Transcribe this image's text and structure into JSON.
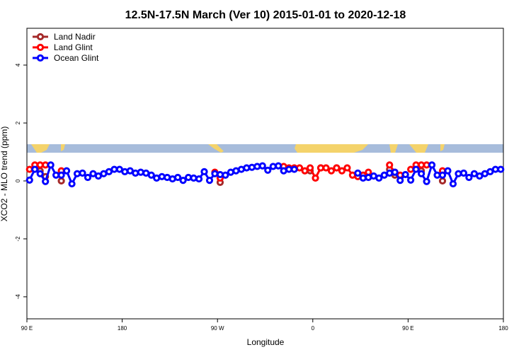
{
  "chart_data": {
    "type": "line",
    "title": "12.5N-17.5N March (Ver 10)   2015-01-01 to 2020-12-18",
    "x_label": "Longitude",
    "y_label": "XCO2 - MLO trend (ppm)",
    "xlim": [
      90,
      540
    ],
    "ylim": [
      -4.76,
      5.27
    ],
    "xticks": [
      {
        "value": 90,
        "label": "90 E"
      },
      180,
      {
        "value": 270,
        "label": "90 W"
      },
      {
        "value": 360,
        "label": "0"
      },
      {
        "value": 450,
        "label": "90 E"
      },
      {
        "value": 540,
        "label": "180"
      }
    ],
    "yticks": [
      -4,
      -2,
      0,
      2,
      4
    ],
    "legend": "top-left",
    "x": [
      92.5,
      97.5,
      102.5,
      107.5,
      112.5,
      117.5,
      122.5,
      127.5,
      132.5,
      137.5,
      142.5,
      147.5,
      152.5,
      157.5,
      162.5,
      167.5,
      172.5,
      177.5,
      182.5,
      187.5,
      192.5,
      197.5,
      202.5,
      207.5,
      212.5,
      217.5,
      222.5,
      227.5,
      232.5,
      237.5,
      242.5,
      247.5,
      252.5,
      257.5,
      262.5,
      267.5,
      272.5,
      277.5,
      282.5,
      287.5,
      292.5,
      297.5,
      302.5,
      307.5,
      312.5,
      317.5,
      322.5,
      327.5,
      332.5,
      337.5,
      342.5,
      347.5,
      352.5,
      357.5,
      362.5,
      367.5,
      372.5,
      377.5,
      382.5,
      387.5,
      392.5,
      397.5,
      402.5,
      407.5,
      412.5,
      417.5,
      422.5,
      427.5,
      432.5,
      437.5,
      442.5,
      447.5,
      452.5,
      457.5,
      462.5,
      467.5,
      472.5,
      477.5,
      482.5,
      487.5,
      492.5,
      497.5,
      502.5,
      507.5,
      512.5,
      517.5,
      522.5,
      527.5,
      532.5,
      537.5
    ],
    "series": [
      {
        "name": "Land Nadir",
        "color": "#a52a2a",
        "values": [
          null,
          null,
          0.35,
          0.15,
          null,
          null,
          0,
          null,
          null,
          null,
          null,
          null,
          null,
          null,
          null,
          null,
          null,
          null,
          null,
          null,
          null,
          null,
          null,
          null,
          null,
          null,
          null,
          null,
          null,
          null,
          null,
          null,
          null,
          null,
          null,
          null,
          -0.05,
          null,
          null,
          null,
          null,
          null,
          null,
          null,
          null,
          null,
          null,
          null,
          null,
          null,
          null,
          null,
          null,
          0.35,
          null,
          0.45,
          null,
          null,
          0.45,
          null,
          null,
          null,
          null,
          null,
          null,
          null,
          null,
          null,
          0.4,
          0.2,
          null,
          null,
          null,
          null,
          0.35,
          null,
          null,
          null,
          0,
          null,
          null,
          null,
          null,
          null,
          null,
          null,
          null,
          null,
          null,
          null
        ]
      },
      {
        "name": "Land Glint",
        "color": "#ff0000",
        "values": [
          0.4,
          0.55,
          0.55,
          0.55,
          null,
          null,
          0.35,
          null,
          null,
          null,
          null,
          null,
          null,
          null,
          null,
          null,
          null,
          null,
          null,
          null,
          null,
          null,
          null,
          null,
          null,
          null,
          null,
          null,
          null,
          null,
          null,
          null,
          null,
          null,
          null,
          0.3,
          0.1,
          null,
          null,
          null,
          null,
          null,
          null,
          null,
          null,
          null,
          null,
          null,
          0.5,
          0.45,
          0.45,
          0.45,
          0.35,
          0.45,
          0.1,
          0.45,
          0.45,
          0.35,
          0.45,
          0.35,
          0.45,
          0.2,
          0.15,
          0.2,
          0.3,
          null,
          null,
          null,
          0.55,
          0.3,
          0.2,
          null,
          0.4,
          0.55,
          0.55,
          0.55,
          null,
          null,
          0.35,
          null,
          null,
          null,
          null,
          null,
          null,
          null,
          null,
          null,
          null,
          null
        ]
      },
      {
        "name": "Ocean Glint",
        "color": "#0000ff",
        "values": [
          0.03,
          0.4,
          0.25,
          -0.02,
          0.55,
          0.2,
          0.2,
          0.35,
          -0.1,
          0.25,
          0.27,
          0.12,
          0.25,
          0.17,
          0.25,
          0.32,
          0.4,
          0.4,
          0.32,
          0.35,
          0.27,
          0.3,
          0.27,
          0.2,
          0.1,
          0.15,
          0.12,
          0.07,
          0.12,
          0.02,
          0.12,
          0.1,
          0.07,
          0.32,
          0.02,
          0.25,
          0.22,
          0.2,
          0.3,
          0.35,
          0.4,
          0.45,
          0.47,
          0.5,
          0.52,
          0.37,
          0.5,
          0.52,
          0.35,
          0.4,
          0.4,
          null,
          null,
          null,
          null,
          null,
          null,
          null,
          null,
          null,
          null,
          null,
          0.27,
          0.1,
          0.12,
          0.17,
          0.1,
          0.2,
          0.27,
          0.3,
          0.02,
          0.22,
          0.03,
          0.4,
          0.25,
          -0.02,
          0.55,
          0.2,
          0.2,
          0.35,
          -0.1,
          0.25,
          0.27,
          0.12,
          0.25,
          0.17,
          0.25,
          0.32,
          0.4,
          0.4
        ]
      }
    ]
  }
}
